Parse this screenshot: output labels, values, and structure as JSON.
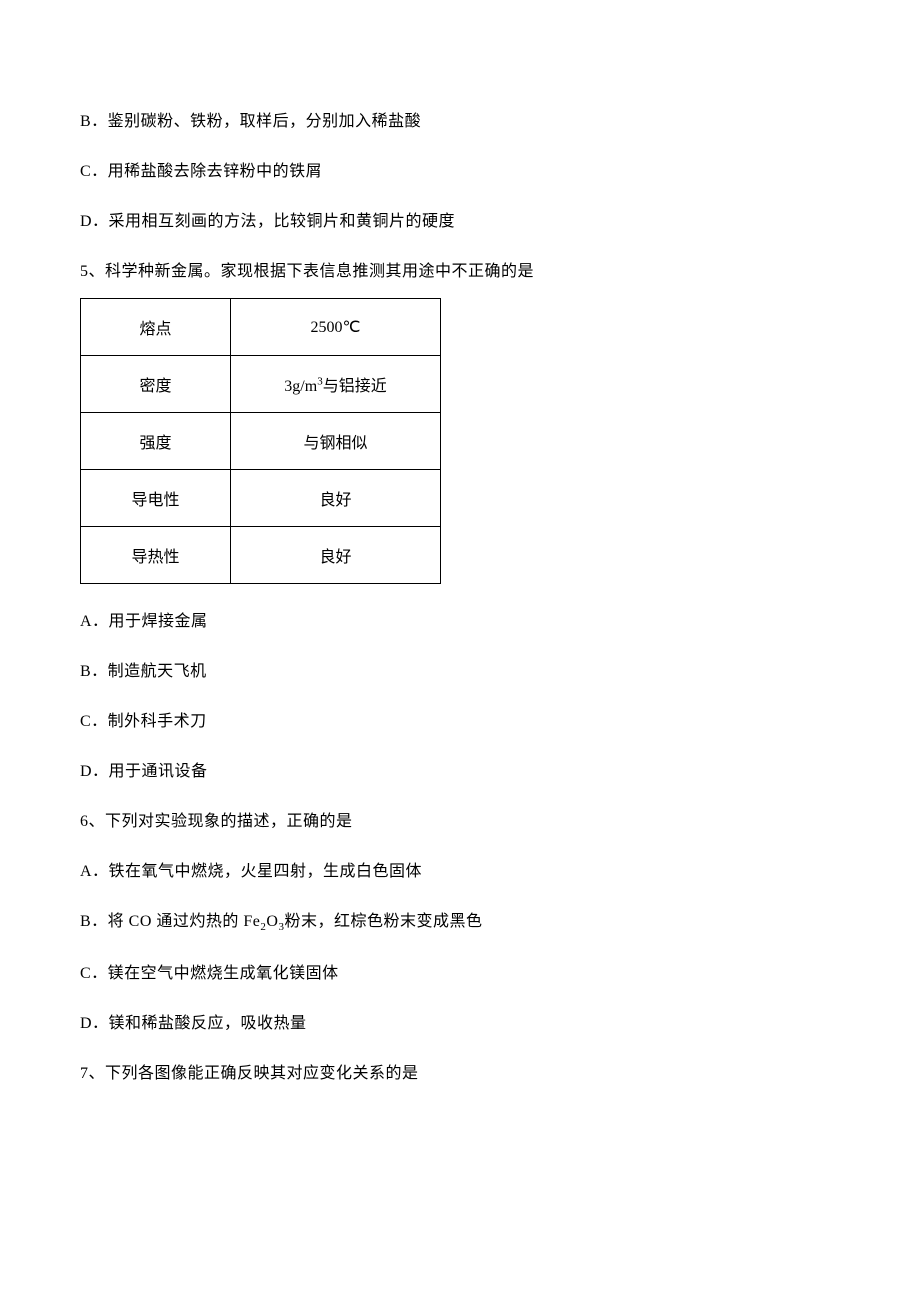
{
  "q4": {
    "opt_b": "B．鉴别碳粉、铁粉，取样后，分别加入稀盐酸",
    "opt_c": "C．用稀盐酸去除去锌粉中的铁屑",
    "opt_d": "D．采用相互刻画的方法，比较铜片和黄铜片的硬度"
  },
  "q5": {
    "stem": "5、科学种新金属。家现根据下表信息推测其用途中不正确的是",
    "table": {
      "rows": [
        {
          "label": "熔点",
          "value": "2500℃"
        },
        {
          "label": "密度",
          "value_prefix": "3g/m",
          "value_sup": "3",
          "value_suffix": "与铝接近"
        },
        {
          "label": "强度",
          "value": "与钢相似"
        },
        {
          "label": "导电性",
          "value": "良好"
        },
        {
          "label": "导热性",
          "value": "良好"
        }
      ]
    },
    "opt_a": "A．用于焊接金属",
    "opt_b": "B．制造航天飞机",
    "opt_c": "C．制外科手术刀",
    "opt_d": "D．用于通讯设备"
  },
  "q6": {
    "stem": "6、下列对实验现象的描述，正确的是",
    "opt_a": "A．铁在氧气中燃烧，火星四射，生成白色固体",
    "opt_b_prefix": "B．将 CO 通过灼热的 Fe",
    "opt_b_sub1": "2",
    "opt_b_mid": "O",
    "opt_b_sub2": "3",
    "opt_b_suffix": "粉末，红棕色粉末变成黑色",
    "opt_c": "C．镁在空气中燃烧生成氧化镁固体",
    "opt_d": "D．镁和稀盐酸反应，吸收热量"
  },
  "q7": {
    "stem": "7、下列各图像能正确反映其对应变化关系的是"
  }
}
